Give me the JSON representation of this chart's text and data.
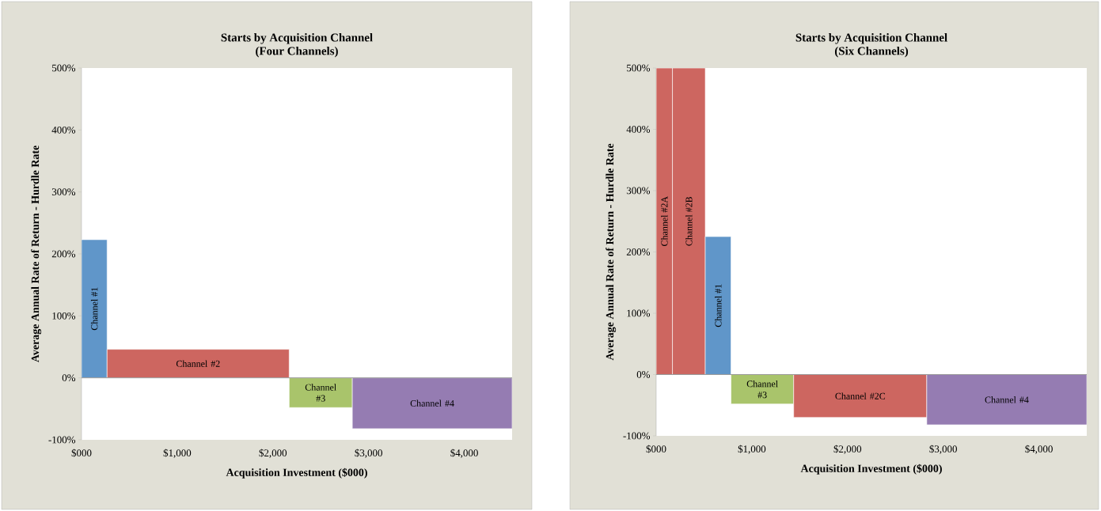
{
  "chart_data": [
    {
      "type": "histogram",
      "title": "Starts by Acquisition Channel",
      "subtitle": "(Four Channels)",
      "xlabel": "Acquisition Investment ($000)",
      "ylabel": "Average Annual Rate of Return - Hurdle Rate",
      "bins": [
        0,
        267,
        2170,
        2830,
        4500
      ],
      "values": [
        223,
        46,
        -48,
        -82
      ],
      "colors": [
        "#6096c9",
        "#cd6660",
        "#a9c46b",
        "#957cb2"
      ],
      "xlim": [
        0,
        4500
      ],
      "ylim": [
        -100,
        500
      ],
      "xticks": [
        {
          "value": 0,
          "label": "$000"
        },
        {
          "value": 1000,
          "label": "$1,000"
        },
        {
          "value": 2000,
          "label": "$2,000"
        },
        {
          "value": 3000,
          "label": "$3,000"
        },
        {
          "value": 4000,
          "label": "$4,000"
        }
      ],
      "yticks": [
        {
          "value": -100,
          "label": "-100%"
        },
        {
          "value": 0,
          "label": "0%"
        },
        {
          "value": 100,
          "label": "100%"
        },
        {
          "value": 200,
          "label": "200%"
        },
        {
          "value": 300,
          "label": "300%"
        },
        {
          "value": 400,
          "label": "400%"
        },
        {
          "value": 500,
          "label": "500%"
        }
      ],
      "annotations": [
        "Channel #1",
        "Channel #2",
        "Channel #3",
        "Channel #4"
      ]
    },
    {
      "type": "histogram",
      "title": "Starts by Acquisition Channel",
      "subtitle": "(Six Channels)",
      "xlabel": "Acquisition Investment ($000)",
      "ylabel": "Average Annual Rate of Return - Hurdle Rate",
      "bins": [
        0,
        170,
        513,
        782,
        1437,
        2828,
        4500
      ],
      "values": [
        500,
        500,
        225,
        -48,
        -70,
        -82
      ],
      "colors": [
        "#cd6660",
        "#cd6660",
        "#6096c9",
        "#a9c46b",
        "#cd6660",
        "#957cb2"
      ],
      "xlim": [
        0,
        4500
      ],
      "ylim": [
        -100,
        500
      ],
      "xticks": [
        {
          "value": 0,
          "label": "$000"
        },
        {
          "value": 1000,
          "label": "$1,000"
        },
        {
          "value": 2000,
          "label": "$2,000"
        },
        {
          "value": 3000,
          "label": "$3,000"
        },
        {
          "value": 4000,
          "label": "$4,000"
        }
      ],
      "yticks": [
        {
          "value": -100,
          "label": "-100%"
        },
        {
          "value": 0,
          "label": "0%"
        },
        {
          "value": 100,
          "label": "100%"
        },
        {
          "value": 200,
          "label": "200%"
        },
        {
          "value": 300,
          "label": "300%"
        },
        {
          "value": 400,
          "label": "400%"
        },
        {
          "value": 500,
          "label": "500%"
        }
      ],
      "annotations": [
        "Channel #2A",
        "Channel #2B",
        "Channel #1",
        "Channel #3",
        "Channel #2C",
        "Channel #4"
      ]
    }
  ]
}
